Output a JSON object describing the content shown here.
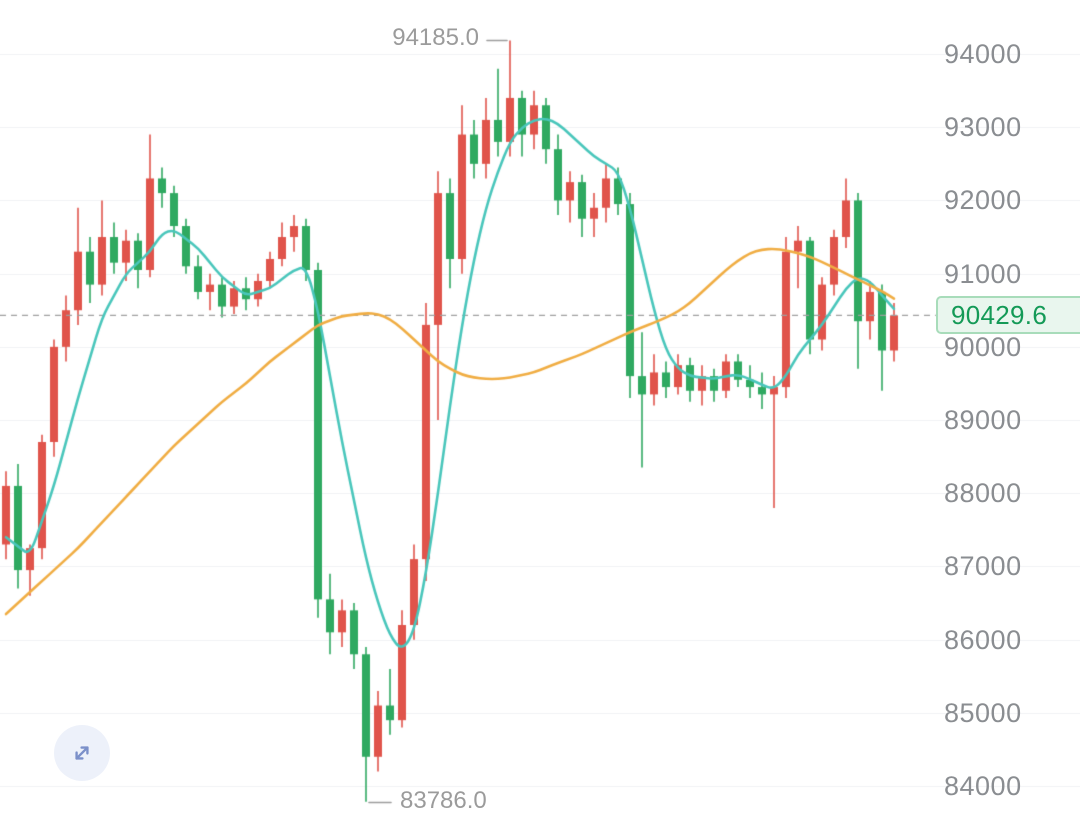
{
  "chart": {
    "current_price_label": "90429.6",
    "high_label": "94185.0",
    "low_label": "83786.0"
  },
  "controls": {
    "expand_button": {
      "icon": "expand-arrows-icon"
    }
  },
  "chart_data": {
    "type": "candlestick",
    "title": "",
    "color_convention": "red = up, green = down",
    "current_price": 90429.6,
    "session_high": 94185.0,
    "session_low": 83786.0,
    "y_axis": {
      "position": "right",
      "grid": true,
      "range_top": 94738,
      "range_bottom": 83427,
      "ticks": [
        "94000",
        "93000",
        "92000",
        "91000",
        "90000",
        "89000",
        "88000",
        "87000",
        "86000",
        "85000",
        "84000"
      ]
    },
    "candles_ohlc": [
      [
        87300,
        88300,
        87100,
        88100
      ],
      [
        88100,
        88400,
        86700,
        86950
      ],
      [
        86950,
        87300,
        86600,
        87250
      ],
      [
        87250,
        88800,
        87100,
        88700
      ],
      [
        88700,
        90100,
        88500,
        90000
      ],
      [
        90000,
        90700,
        89800,
        90500
      ],
      [
        90500,
        91900,
        90300,
        91300
      ],
      [
        91300,
        91500,
        90600,
        90850
      ],
      [
        90850,
        92000,
        90700,
        91500
      ],
      [
        91500,
        91700,
        91000,
        91150
      ],
      [
        91150,
        91600,
        90900,
        91450
      ],
      [
        91450,
        91550,
        90800,
        91050
      ],
      [
        91050,
        92900,
        90950,
        92300
      ],
      [
        92300,
        92450,
        91900,
        92100
      ],
      [
        92100,
        92200,
        91500,
        91650
      ],
      [
        91650,
        91750,
        91000,
        91100
      ],
      [
        91100,
        91250,
        90650,
        90750
      ],
      [
        90750,
        91000,
        90500,
        90850
      ],
      [
        90850,
        90950,
        90400,
        90550
      ],
      [
        90550,
        90900,
        90450,
        90800
      ],
      [
        90800,
        90950,
        90500,
        90650
      ],
      [
        90650,
        91000,
        90550,
        90900
      ],
      [
        90900,
        91300,
        90800,
        91200
      ],
      [
        91200,
        91700,
        91100,
        91500
      ],
      [
        91500,
        91800,
        91300,
        91650
      ],
      [
        91650,
        91750,
        90900,
        91050
      ],
      [
        91050,
        91150,
        86300,
        86550
      ],
      [
        86550,
        86900,
        85800,
        86100
      ],
      [
        86100,
        86550,
        85900,
        86400
      ],
      [
        86400,
        86500,
        85600,
        85800
      ],
      [
        85800,
        85900,
        83786,
        84400
      ],
      [
        84400,
        85300,
        84200,
        85100
      ],
      [
        85100,
        85600,
        84700,
        84900
      ],
      [
        84900,
        86400,
        84800,
        86200
      ],
      [
        86200,
        87300,
        86000,
        87100
      ],
      [
        87100,
        90600,
        86800,
        90300
      ],
      [
        90300,
        92400,
        89000,
        92100
      ],
      [
        92100,
        92300,
        90800,
        91200
      ],
      [
        91200,
        93300,
        91000,
        92900
      ],
      [
        92900,
        93100,
        92300,
        92500
      ],
      [
        92500,
        93400,
        92300,
        93100
      ],
      [
        93100,
        93800,
        92600,
        92800
      ],
      [
        92800,
        94185,
        92600,
        93400
      ],
      [
        93400,
        93500,
        92600,
        92900
      ],
      [
        92900,
        93500,
        92700,
        93300
      ],
      [
        93300,
        93400,
        92500,
        92700
      ],
      [
        92700,
        92900,
        91800,
        92000
      ],
      [
        92000,
        92400,
        91700,
        92250
      ],
      [
        92250,
        92350,
        91500,
        91750
      ],
      [
        91750,
        92100,
        91500,
        91900
      ],
      [
        91900,
        92500,
        91700,
        92300
      ],
      [
        92300,
        92450,
        91800,
        91950
      ],
      [
        91950,
        92100,
        89300,
        89600
      ],
      [
        89600,
        90200,
        88350,
        89350
      ],
      [
        89350,
        89900,
        89200,
        89650
      ],
      [
        89650,
        89800,
        89300,
        89450
      ],
      [
        89450,
        89900,
        89350,
        89750
      ],
      [
        89750,
        89850,
        89250,
        89400
      ],
      [
        89400,
        89750,
        89200,
        89600
      ],
      [
        89600,
        89700,
        89250,
        89400
      ],
      [
        89400,
        89900,
        89300,
        89800
      ],
      [
        89800,
        89900,
        89450,
        89550
      ],
      [
        89550,
        89750,
        89300,
        89450
      ],
      [
        89450,
        89650,
        89150,
        89350
      ],
      [
        89350,
        89600,
        87800,
        89450
      ],
      [
        89450,
        91500,
        89300,
        91300
      ],
      [
        91300,
        91650,
        90800,
        91450
      ],
      [
        91450,
        91500,
        89900,
        90100
      ],
      [
        90100,
        90950,
        89950,
        90850
      ],
      [
        90850,
        91600,
        90700,
        91500
      ],
      [
        91500,
        92300,
        91350,
        92000
      ],
      [
        92000,
        92100,
        89700,
        90350
      ],
      [
        90350,
        90900,
        90100,
        90750
      ],
      [
        90750,
        90850,
        89400,
        89950
      ],
      [
        89950,
        90600,
        89800,
        90429.6
      ]
    ],
    "overlays": [
      {
        "name": "ma-fast",
        "color": "#49c6bb",
        "points": [
          [
            0,
            87400
          ],
          [
            2,
            87150
          ],
          [
            4,
            88100
          ],
          [
            6,
            89300
          ],
          [
            8,
            90400
          ],
          [
            10,
            91000
          ],
          [
            12,
            91300
          ],
          [
            13,
            91550
          ],
          [
            14,
            91600
          ],
          [
            16,
            91350
          ],
          [
            18,
            90950
          ],
          [
            20,
            90700
          ],
          [
            22,
            90800
          ],
          [
            24,
            91050
          ],
          [
            25,
            91100
          ],
          [
            26,
            90500
          ],
          [
            27,
            89600
          ],
          [
            28,
            88700
          ],
          [
            29,
            87900
          ],
          [
            30,
            87100
          ],
          [
            31,
            86500
          ],
          [
            32,
            86050
          ],
          [
            33,
            85850
          ],
          [
            34,
            86100
          ],
          [
            35,
            86900
          ],
          [
            36,
            88000
          ],
          [
            37,
            89200
          ],
          [
            38,
            90300
          ],
          [
            39,
            91200
          ],
          [
            40,
            91900
          ],
          [
            41,
            92400
          ],
          [
            42,
            92800
          ],
          [
            43,
            93000
          ],
          [
            44,
            93100
          ],
          [
            45,
            93120
          ],
          [
            46,
            93050
          ],
          [
            47,
            92900
          ],
          [
            48,
            92750
          ],
          [
            49,
            92600
          ],
          [
            50,
            92500
          ],
          [
            51,
            92400
          ],
          [
            52,
            91900
          ],
          [
            53,
            91200
          ],
          [
            54,
            90500
          ],
          [
            55,
            89950
          ],
          [
            56,
            89700
          ],
          [
            57,
            89600
          ],
          [
            58,
            89580
          ],
          [
            59,
            89560
          ],
          [
            60,
            89600
          ],
          [
            61,
            89620
          ],
          [
            62,
            89560
          ],
          [
            63,
            89480
          ],
          [
            64,
            89420
          ],
          [
            65,
            89600
          ],
          [
            66,
            89900
          ],
          [
            67,
            90100
          ],
          [
            68,
            90300
          ],
          [
            69,
            90550
          ],
          [
            70,
            90800
          ],
          [
            71,
            90950
          ],
          [
            72,
            90900
          ],
          [
            73,
            90700
          ],
          [
            74,
            90520
          ]
        ]
      },
      {
        "name": "ma-slow",
        "color": "#f0ad43",
        "points": [
          [
            0,
            86350
          ],
          [
            2,
            86650
          ],
          [
            4,
            86950
          ],
          [
            6,
            87250
          ],
          [
            8,
            87600
          ],
          [
            10,
            87950
          ],
          [
            12,
            88300
          ],
          [
            14,
            88650
          ],
          [
            16,
            88950
          ],
          [
            18,
            89250
          ],
          [
            20,
            89500
          ],
          [
            22,
            89800
          ],
          [
            24,
            90050
          ],
          [
            26,
            90300
          ],
          [
            28,
            90420
          ],
          [
            30,
            90460
          ],
          [
            31,
            90450
          ],
          [
            32,
            90380
          ],
          [
            33,
            90250
          ],
          [
            34,
            90100
          ],
          [
            35,
            89950
          ],
          [
            36,
            89800
          ],
          [
            37,
            89700
          ],
          [
            38,
            89620
          ],
          [
            39,
            89580
          ],
          [
            40,
            89560
          ],
          [
            41,
            89560
          ],
          [
            42,
            89580
          ],
          [
            44,
            89650
          ],
          [
            46,
            89780
          ],
          [
            48,
            89900
          ],
          [
            50,
            90050
          ],
          [
            52,
            90200
          ],
          [
            54,
            90330
          ],
          [
            55,
            90400
          ],
          [
            56,
            90480
          ],
          [
            57,
            90600
          ],
          [
            58,
            90750
          ],
          [
            59,
            90900
          ],
          [
            60,
            91050
          ],
          [
            61,
            91180
          ],
          [
            62,
            91280
          ],
          [
            63,
            91330
          ],
          [
            64,
            91340
          ],
          [
            65,
            91320
          ],
          [
            66,
            91280
          ],
          [
            67,
            91230
          ],
          [
            68,
            91160
          ],
          [
            69,
            91080
          ],
          [
            70,
            91000
          ],
          [
            71,
            90920
          ],
          [
            72,
            90840
          ],
          [
            73,
            90760
          ],
          [
            74,
            90660
          ]
        ]
      }
    ],
    "colors": {
      "up": "#e0544b",
      "down": "#2fa961",
      "grid": "#f0f2f4",
      "axis_text": "#8a8d91",
      "dashed_line": "#9e9e9e",
      "annotation_text": "#9b9b9b",
      "price_tag_text": "#149a57",
      "price_tag_bg": "#e9f6ee",
      "price_tag_border": "#a8dcba"
    }
  }
}
